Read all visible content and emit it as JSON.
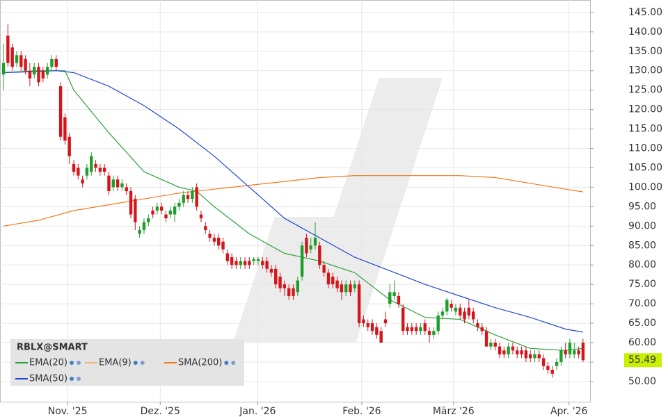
{
  "chart_data": {
    "type": "candlestick",
    "symbol": "RBLX@SMART",
    "up_color": "#1f9e2c",
    "down_color": "#d4161c",
    "xlim": [
      -0.8,
      133.6
    ],
    "ylim": [
      44.8,
      148.2
    ],
    "xticks": [
      {
        "value": 14.6,
        "label": "Nov. '25"
      },
      {
        "value": 35.7,
        "label": "Dez. '25"
      },
      {
        "value": 57.9,
        "label": "Jan. '26"
      },
      {
        "value": 81.6,
        "label": "Feb. '26"
      },
      {
        "value": 102.5,
        "label": "März '26"
      },
      {
        "value": 128.8,
        "label": "Apr. '26"
      }
    ],
    "yticks": [
      {
        "value": 50,
        "label": "50.00"
      },
      {
        "value": 55,
        "label": "55.00"
      },
      {
        "value": 60,
        "label": "60.00"
      },
      {
        "value": 65,
        "label": "65.00"
      },
      {
        "value": 70,
        "label": "70.00"
      },
      {
        "value": 75,
        "label": "75.00"
      },
      {
        "value": 80,
        "label": "80.00"
      },
      {
        "value": 85,
        "label": "85.00"
      },
      {
        "value": 90,
        "label": "90.00"
      },
      {
        "value": 95,
        "label": "95.00"
      },
      {
        "value": 100,
        "label": "100.00"
      },
      {
        "value": 105,
        "label": "105.00"
      },
      {
        "value": 110,
        "label": "110.00"
      },
      {
        "value": 115,
        "label": "115.00"
      },
      {
        "value": 120,
        "label": "120.00"
      },
      {
        "value": 125,
        "label": "125.00"
      },
      {
        "value": 130,
        "label": "130.00"
      },
      {
        "value": 135,
        "label": "135.00"
      },
      {
        "value": 140,
        "label": "140.00"
      },
      {
        "value": 145,
        "label": "145.00"
      }
    ],
    "grid": true,
    "ohlc": [
      [
        129,
        137,
        125,
        132
      ],
      [
        139,
        142,
        131,
        132
      ],
      [
        136,
        137,
        130,
        131
      ],
      [
        132,
        135,
        131,
        134
      ],
      [
        134,
        135,
        130,
        131
      ],
      [
        133,
        134,
        129,
        130
      ],
      [
        130,
        132,
        126,
        128
      ],
      [
        129,
        132,
        128,
        131
      ],
      [
        131,
        132,
        126,
        127
      ],
      [
        130,
        131,
        127,
        128
      ],
      [
        129,
        132,
        128,
        131
      ],
      [
        131,
        134,
        130,
        133
      ],
      [
        133,
        134,
        130,
        131
      ],
      [
        126,
        127,
        112,
        113
      ],
      [
        118,
        119,
        111,
        112
      ],
      [
        113,
        114,
        106,
        108
      ],
      [
        106,
        107,
        103,
        104
      ],
      [
        105,
        106,
        102,
        103
      ],
      [
        102,
        103,
        100,
        101
      ],
      [
        103,
        106,
        102,
        105
      ],
      [
        104,
        109,
        103,
        108
      ],
      [
        106,
        107,
        104,
        105
      ],
      [
        105,
        106,
        103,
        104
      ],
      [
        105,
        106,
        103,
        104
      ],
      [
        103,
        104,
        98,
        99
      ],
      [
        100,
        103,
        99,
        102
      ],
      [
        102,
        103,
        99,
        100
      ],
      [
        100,
        102,
        99,
        101
      ],
      [
        100,
        101,
        98,
        99
      ],
      [
        99,
        100,
        92,
        93
      ],
      [
        97,
        98,
        89,
        91
      ],
      [
        88,
        90,
        87,
        89
      ],
      [
        89,
        92,
        88,
        91
      ],
      [
        91,
        93,
        90,
        92
      ],
      [
        94,
        95,
        92,
        93
      ],
      [
        94,
        96,
        93,
        95
      ],
      [
        95,
        96,
        93,
        94
      ],
      [
        93,
        94,
        91,
        92
      ],
      [
        93,
        95,
        92,
        94
      ],
      [
        93,
        96,
        91,
        95
      ],
      [
        95,
        97,
        94,
        96
      ],
      [
        96,
        99,
        95,
        98
      ],
      [
        98,
        99,
        96,
        97
      ],
      [
        97,
        100,
        96,
        99
      ],
      [
        100,
        101,
        94,
        95
      ],
      [
        93,
        94,
        91,
        92
      ],
      [
        90,
        91,
        88,
        89
      ],
      [
        88,
        89,
        86,
        87
      ],
      [
        87,
        88,
        85,
        86
      ],
      [
        87,
        88,
        84,
        85
      ],
      [
        86,
        87,
        83,
        84
      ],
      [
        83,
        84,
        80,
        81
      ],
      [
        82,
        83,
        79,
        80
      ],
      [
        81,
        82,
        79,
        80
      ],
      [
        80,
        82,
        79,
        81
      ],
      [
        81,
        82,
        79,
        80
      ],
      [
        81,
        82,
        79,
        80
      ],
      [
        81,
        82,
        80,
        81.5
      ],
      [
        81,
        82,
        80,
        81.5
      ],
      [
        81,
        82,
        79,
        80
      ],
      [
        81,
        82,
        78,
        79
      ],
      [
        79,
        80,
        77,
        78
      ],
      [
        79,
        80,
        74,
        75
      ],
      [
        77,
        78,
        73,
        74
      ],
      [
        75,
        76,
        72,
        74
      ],
      [
        74,
        75,
        71,
        72
      ],
      [
        74,
        75,
        71,
        72
      ],
      [
        73,
        77,
        72,
        76
      ],
      [
        77,
        86,
        76,
        85
      ],
      [
        87,
        88,
        82,
        83
      ],
      [
        84,
        87,
        83,
        85
      ],
      [
        85,
        91,
        84,
        87
      ],
      [
        85,
        86,
        79,
        80
      ],
      [
        80,
        81,
        77,
        78
      ],
      [
        78,
        79,
        74,
        75
      ],
      [
        77,
        78,
        74,
        75
      ],
      [
        76,
        77,
        73,
        74
      ],
      [
        75,
        76,
        71,
        73
      ],
      [
        73,
        76,
        72,
        75
      ],
      [
        75,
        76,
        72,
        73
      ],
      [
        74,
        76,
        73,
        75
      ],
      [
        75,
        76,
        64,
        65
      ],
      [
        66,
        67,
        64,
        65
      ],
      [
        65,
        66,
        63,
        64
      ],
      [
        65,
        66,
        62,
        63
      ],
      [
        64,
        65,
        61,
        62
      ],
      [
        63,
        64,
        60,
        60
      ],
      [
        66,
        68,
        64,
        65
      ],
      [
        70,
        75,
        69,
        73
      ],
      [
        72,
        76,
        71,
        73
      ],
      [
        72,
        73,
        69,
        70
      ],
      [
        69,
        70,
        62,
        63
      ],
      [
        64,
        65,
        62,
        63
      ],
      [
        64,
        65,
        62,
        63
      ],
      [
        64,
        65,
        62,
        63
      ],
      [
        63,
        65,
        62,
        64
      ],
      [
        65,
        66,
        62,
        63
      ],
      [
        63,
        64,
        60,
        62
      ],
      [
        62,
        64,
        61,
        63
      ],
      [
        63,
        68,
        62,
        67
      ],
      [
        67,
        69,
        66,
        68
      ],
      [
        68,
        71.5,
        67,
        71
      ],
      [
        70,
        71,
        68,
        69
      ],
      [
        68,
        70,
        67,
        69
      ],
      [
        69,
        70,
        66,
        67
      ],
      [
        68,
        69,
        65,
        66
      ],
      [
        69,
        71,
        66,
        67
      ],
      [
        68,
        69,
        65,
        66
      ],
      [
        65,
        66,
        63,
        64
      ],
      [
        64,
        65,
        62,
        63
      ],
      [
        63,
        64,
        59,
        59
      ],
      [
        59,
        61,
        58,
        60
      ],
      [
        60,
        61,
        58,
        59
      ],
      [
        59,
        60,
        56,
        57
      ],
      [
        58,
        59,
        56,
        57
      ],
      [
        57,
        60,
        56,
        59
      ],
      [
        59,
        60,
        57,
        58
      ],
      [
        58,
        59,
        56,
        57
      ],
      [
        58,
        59,
        56,
        57
      ],
      [
        58,
        59,
        55,
        56
      ],
      [
        57,
        58,
        55,
        56
      ],
      [
        56,
        58,
        55,
        57
      ],
      [
        57,
        58,
        55,
        56
      ],
      [
        56,
        57,
        53,
        54
      ],
      [
        54,
        55,
        52,
        53
      ],
      [
        53,
        54,
        51,
        52
      ],
      [
        54,
        56,
        53,
        55
      ],
      [
        55,
        59,
        54,
        58
      ],
      [
        58,
        60,
        56,
        57
      ],
      [
        57,
        61,
        56,
        60
      ],
      [
        57,
        60,
        56,
        58
      ],
      [
        58,
        59,
        56,
        57
      ],
      [
        60,
        61,
        55,
        55.49
      ]
    ],
    "series": [
      {
        "name": "EMA(20)",
        "color": "#2aa33a",
        "x": [
          0,
          8,
          14,
          16,
          24,
          32,
          40,
          44,
          48,
          56,
          64,
          72,
          80,
          88,
          96,
          104,
          112,
          120,
          128,
          132
        ],
        "values": [
          129.5,
          130,
          130,
          125,
          114,
          104,
          100,
          99,
          95,
          88,
          83,
          81,
          78,
          71,
          66.5,
          66,
          62,
          58.5,
          58,
          58.5
        ]
      },
      {
        "name": "EMA(9)",
        "color": "#e8b87a"
      },
      {
        "name": "SMA(200)",
        "color": "#f07a1a",
        "x": [
          0,
          8,
          16,
          24,
          32,
          40,
          48,
          56,
          64,
          72,
          80,
          88,
          96,
          104,
          112,
          120,
          128,
          132
        ],
        "values": [
          90,
          91.5,
          94,
          95.5,
          97,
          98.5,
          99.5,
          100.5,
          101.5,
          102.5,
          103,
          103,
          103,
          103,
          102.5,
          101,
          99.5,
          98.8
        ]
      },
      {
        "name": "SMA(50)",
        "color": "#2046d6",
        "x": [
          0,
          8,
          12,
          16,
          24,
          32,
          40,
          48,
          56,
          64,
          72,
          80,
          88,
          96,
          104,
          112,
          120,
          128,
          132
        ],
        "values": [
          129.5,
          129.8,
          130,
          129.5,
          126,
          121,
          115,
          108,
          100,
          92,
          87,
          82,
          78.5,
          75,
          72,
          69,
          66.5,
          63.5,
          62.7
        ]
      }
    ]
  }
}
